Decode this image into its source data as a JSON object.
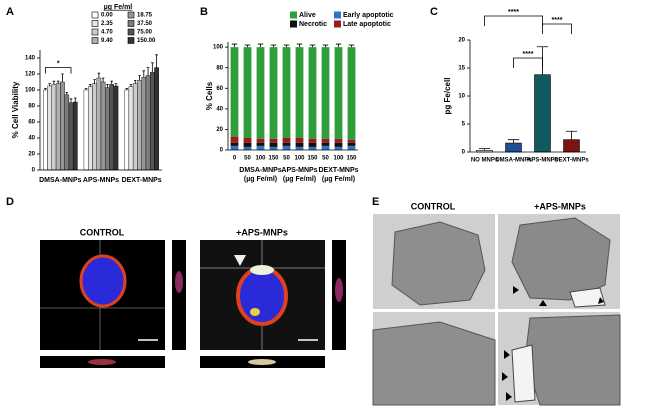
{
  "chart_data": [
    {
      "type": "grouped_bar",
      "panel": "A",
      "ylabel": "% Cell Viability",
      "legend_title": "µg Fe/ml",
      "categories": [
        "DMSA-MNPs",
        "APS-MNPs",
        "DEXT-MNPs"
      ],
      "series": [
        {
          "name": "0.00",
          "color": "#ffffff",
          "values": [
            100,
            100,
            100
          ],
          "errors": [
            2,
            2,
            2
          ]
        },
        {
          "name": "2.35",
          "color": "#e4e4e4",
          "values": [
            105,
            104,
            104
          ],
          "errors": [
            3,
            3,
            3
          ]
        },
        {
          "name": "4.70",
          "color": "#cccccc",
          "values": [
            107,
            108,
            108
          ],
          "errors": [
            4,
            5,
            4
          ]
        },
        {
          "name": "9.40",
          "color": "#b0b0b0",
          "values": [
            108,
            115,
            112
          ],
          "errors": [
            3,
            6,
            6
          ]
        },
        {
          "name": "18.75",
          "color": "#969696",
          "values": [
            110,
            110,
            116
          ],
          "errors": [
            10,
            5,
            8
          ]
        },
        {
          "name": "37.50",
          "color": "#7c7c7c",
          "values": [
            94,
            103,
            118
          ],
          "errors": [
            3,
            4,
            10
          ]
        },
        {
          "name": "75.00",
          "color": "#555555",
          "values": [
            84,
            107,
            122
          ],
          "errors": [
            5,
            4,
            12
          ]
        },
        {
          "name": "150.00",
          "color": "#333333",
          "values": [
            85,
            105,
            128
          ],
          "errors": [
            5,
            3,
            16
          ]
        }
      ],
      "ylim": [
        0,
        150
      ],
      "yticks": [
        0,
        20,
        40,
        60,
        80,
        100,
        120,
        140
      ],
      "annotations": [
        "*"
      ]
    },
    {
      "type": "stacked_bar",
      "panel": "B",
      "ylabel": "% Cells",
      "groups": [
        {
          "label": null,
          "unit": null,
          "categories": [
            "0"
          ]
        },
        {
          "label": "DMSA-MNPs",
          "unit": "(µg Fe/ml)",
          "categories": [
            "50",
            "100",
            "150"
          ]
        },
        {
          "label": "APS-MNPs",
          "unit": "(µg Fe/ml)",
          "categories": [
            "50",
            "100",
            "150"
          ]
        },
        {
          "label": "DEXT-MNPs",
          "unit": "(µg Fe/ml)",
          "categories": [
            "50",
            "100",
            "150"
          ]
        }
      ],
      "series": [
        {
          "name": "Early apoptotic",
          "color": "#2e75c6",
          "values": [
            4,
            3,
            4,
            3,
            4,
            3,
            3,
            4,
            3,
            4
          ]
        },
        {
          "name": "Necrotic",
          "color": "#111111",
          "values": [
            3,
            4,
            3,
            4,
            3,
            4,
            4,
            3,
            4,
            3
          ]
        },
        {
          "name": "Late apoptotic",
          "color": "#9b1c1c",
          "values": [
            6,
            5,
            4,
            4,
            5,
            5,
            4,
            4,
            4,
            3
          ]
        },
        {
          "name": "Alive",
          "color": "#2e9e3a",
          "values": [
            87,
            88,
            89,
            89,
            88,
            88,
            89,
            89,
            89,
            90
          ],
          "errors": [
            3,
            2,
            3,
            2,
            2,
            3,
            2,
            2,
            3,
            2
          ]
        }
      ],
      "ylim": [
        0,
        105
      ],
      "yticks": [
        0,
        20,
        40,
        60,
        80,
        100
      ]
    },
    {
      "type": "bar",
      "panel": "C",
      "ylabel": "pg Fe/cell",
      "categories": [
        "NO MNPs",
        "DMSA-MNPs",
        "APS-MNPs",
        "DEXT-MNPs"
      ],
      "values": [
        0.3,
        1.6,
        13.8,
        2.2
      ],
      "errors": [
        0.3,
        0.6,
        5,
        1.5
      ],
      "colors": [
        "#f2f2f2",
        "#1f4e99",
        "#0e5a5e",
        "#7a1414"
      ],
      "ylim": [
        0,
        20
      ],
      "yticks": [
        0,
        5,
        10,
        15,
        20
      ],
      "annotations": [
        "****",
        "****",
        "****"
      ]
    }
  ],
  "images": [
    {
      "panel": "D",
      "labels": [
        "CONTROL",
        "+APS-MNPs"
      ]
    },
    {
      "panel": "E",
      "labels": [
        "CONTROL",
        "+APS-MNPs"
      ]
    }
  ]
}
